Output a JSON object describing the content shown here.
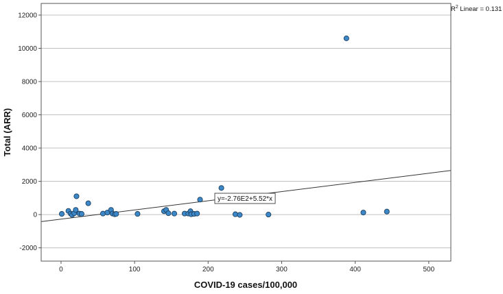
{
  "chart_data": {
    "type": "scatter",
    "xlabel": "COVID-19 cases/100,000",
    "ylabel": "Total (ARR)",
    "xlim": [
      -27,
      530
    ],
    "ylim": [
      -2800,
      12700
    ],
    "x_ticks": [
      "0",
      "100",
      "200",
      "300",
      "400",
      "500"
    ],
    "y_ticks": [
      "-2000",
      "0",
      "2000",
      "4000",
      "6000",
      "8000",
      "10000",
      "12000"
    ],
    "grid": "horizontal",
    "points": [
      {
        "x": 1,
        "y": 40
      },
      {
        "x": 10,
        "y": 220
      },
      {
        "x": 13,
        "y": 60
      },
      {
        "x": 15,
        "y": -20
      },
      {
        "x": 18,
        "y": 80
      },
      {
        "x": 20,
        "y": 280
      },
      {
        "x": 21,
        "y": 1100
      },
      {
        "x": 25,
        "y": 60
      },
      {
        "x": 28,
        "y": 40
      },
      {
        "x": 37,
        "y": 680
      },
      {
        "x": 57,
        "y": 60
      },
      {
        "x": 63,
        "y": 120
      },
      {
        "x": 68,
        "y": 280
      },
      {
        "x": 70,
        "y": 60
      },
      {
        "x": 73,
        "y": 20
      },
      {
        "x": 75,
        "y": 40
      },
      {
        "x": 104,
        "y": 40
      },
      {
        "x": 140,
        "y": 200
      },
      {
        "x": 143,
        "y": 280
      },
      {
        "x": 146,
        "y": 80
      },
      {
        "x": 154,
        "y": 60
      },
      {
        "x": 168,
        "y": 60
      },
      {
        "x": 173,
        "y": 60
      },
      {
        "x": 176,
        "y": 200
      },
      {
        "x": 177,
        "y": 20
      },
      {
        "x": 181,
        "y": 40
      },
      {
        "x": 185,
        "y": 60
      },
      {
        "x": 189,
        "y": 900
      },
      {
        "x": 218,
        "y": 1600
      },
      {
        "x": 237,
        "y": 20
      },
      {
        "x": 243,
        "y": -20
      },
      {
        "x": 282,
        "y": 0
      },
      {
        "x": 388,
        "y": 10600
      },
      {
        "x": 411,
        "y": 120
      },
      {
        "x": 443,
        "y": 180
      }
    ],
    "fit_line": {
      "intercept": -276,
      "slope": 5.52
    },
    "equation_label": "y=-2.76E2+5.52*x",
    "r2_label_prefix": "R",
    "r2_label_sup": "2",
    "r2_label_suffix": " Linear = 0.131"
  },
  "colors": {
    "marker_fill": "#3b87c8",
    "marker_stroke": "#1e3f5c",
    "grid": "#c0c0c0",
    "axis": "#555555",
    "fit_line": "#333333"
  }
}
